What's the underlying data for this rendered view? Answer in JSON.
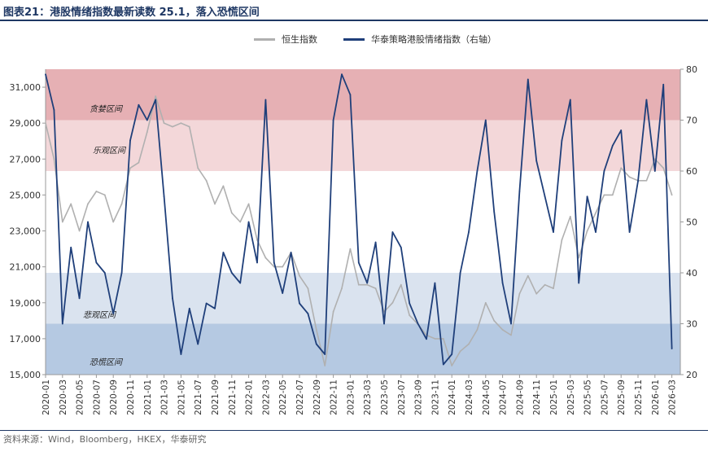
{
  "title": "图表21：港股情绪指数最新读数 25.1，落入恐慌区间",
  "source": "资料来源：Wind，Bloomberg，HKEX，华泰研究",
  "colors": {
    "hsi": "#b0b0b0",
    "sentiment": "#1f3f7a",
    "greed": "#e6b0b4",
    "optimism": "#f3d7d9",
    "pessimism": "#dae3ef",
    "panic": "#b5c9e2",
    "title": "#1f3864"
  },
  "chart_data": {
    "type": "line",
    "title": "",
    "xlabel": "",
    "ylabel_left": "",
    "ylabel_right": "",
    "y_left_lim": [
      15000,
      32000
    ],
    "y_left_ticks": [
      "15,000",
      "17,000",
      "19,000",
      "21,000",
      "23,000",
      "25,000",
      "27,000",
      "29,000",
      "31,000"
    ],
    "y_right_lim": [
      20,
      80
    ],
    "y_right_ticks": [
      "20",
      "30",
      "40",
      "50",
      "60",
      "70",
      "80"
    ],
    "x_ticks": [
      "2020-01",
      "2020-03",
      "2020-05",
      "2020-07",
      "2020-09",
      "2020-11",
      "2021-01",
      "2021-03",
      "2021-05",
      "2021-07",
      "2021-09",
      "2021-11",
      "2022-01",
      "2022-03",
      "2022-05",
      "2022-07",
      "2022-09",
      "2022-11",
      "2023-01",
      "2023-03",
      "2023-05",
      "2023-07",
      "2023-09",
      "2023-11",
      "2024-01",
      "2024-03",
      "2024-05",
      "2024-07",
      "2024-09",
      "2024-11",
      "2025-01",
      "2025-03",
      "2025-05",
      "2025-07",
      "2025-09",
      "2025-11",
      "2026-01",
      "2026-03"
    ],
    "bands": [
      {
        "label": "贪婪区间",
        "from": 70,
        "to": 80,
        "color": "#e6b0b4"
      },
      {
        "label": "乐观区间",
        "from": 60,
        "to": 70,
        "color": "#f3d7d9"
      },
      {
        "label": "悲观区间",
        "from": 30,
        "to": 40,
        "color": "#dae3ef"
      },
      {
        "label": "恐慌区间",
        "from": 20,
        "to": 30,
        "color": "#b5c9e2"
      }
    ],
    "legend_position": "top-right",
    "series": [
      {
        "name": "恒生指数",
        "axis": "left",
        "color": "#b0b0b0",
        "points": [
          [
            "2020-01",
            29000
          ],
          [
            "2020-02",
            27000
          ],
          [
            "2020-03",
            23500
          ],
          [
            "2020-04",
            24500
          ],
          [
            "2020-05",
            23000
          ],
          [
            "2020-06",
            24500
          ],
          [
            "2020-07",
            25200
          ],
          [
            "2020-08",
            25000
          ],
          [
            "2020-09",
            23500
          ],
          [
            "2020-10",
            24500
          ],
          [
            "2020-11",
            26500
          ],
          [
            "2020-12",
            26800
          ],
          [
            "2021-01",
            28500
          ],
          [
            "2021-02",
            30500
          ],
          [
            "2021-03",
            29000
          ],
          [
            "2021-04",
            28800
          ],
          [
            "2021-05",
            29000
          ],
          [
            "2021-06",
            28800
          ],
          [
            "2021-07",
            26500
          ],
          [
            "2021-08",
            25800
          ],
          [
            "2021-09",
            24500
          ],
          [
            "2021-10",
            25500
          ],
          [
            "2021-11",
            24000
          ],
          [
            "2021-12",
            23500
          ],
          [
            "2022-01",
            24500
          ],
          [
            "2022-02",
            22500
          ],
          [
            "2022-03",
            21500
          ],
          [
            "2022-04",
            21000
          ],
          [
            "2022-05",
            21000
          ],
          [
            "2022-06",
            21800
          ],
          [
            "2022-07",
            20500
          ],
          [
            "2022-08",
            19800
          ],
          [
            "2022-09",
            17500
          ],
          [
            "2022-10",
            15500
          ],
          [
            "2022-11",
            18500
          ],
          [
            "2022-12",
            19800
          ],
          [
            "2023-01",
            22000
          ],
          [
            "2023-02",
            20000
          ],
          [
            "2023-03",
            20000
          ],
          [
            "2023-04",
            19800
          ],
          [
            "2023-05",
            18500
          ],
          [
            "2023-06",
            19000
          ],
          [
            "2023-07",
            20000
          ],
          [
            "2023-08",
            18300
          ],
          [
            "2023-09",
            17800
          ],
          [
            "2023-10",
            17200
          ],
          [
            "2023-11",
            17000
          ],
          [
            "2023-12",
            17000
          ],
          [
            "2024-01",
            15500
          ],
          [
            "2024-02",
            16300
          ],
          [
            "2024-03",
            16700
          ],
          [
            "2024-04",
            17500
          ],
          [
            "2024-05",
            19000
          ],
          [
            "2024-06",
            18000
          ],
          [
            "2024-07",
            17500
          ],
          [
            "2024-08",
            17200
          ],
          [
            "2024-09",
            19500
          ],
          [
            "2024-10",
            20500
          ],
          [
            "2024-11",
            19500
          ],
          [
            "2024-12",
            20000
          ],
          [
            "2025-01",
            19800
          ],
          [
            "2025-02",
            22500
          ],
          [
            "2025-03",
            23800
          ],
          [
            "2025-04",
            21500
          ],
          [
            "2025-05",
            23000
          ],
          [
            "2025-06",
            24000
          ],
          [
            "2025-07",
            25000
          ],
          [
            "2025-08",
            25000
          ],
          [
            "2025-09",
            26500
          ],
          [
            "2025-10",
            26000
          ],
          [
            "2025-11",
            25800
          ],
          [
            "2025-12",
            25800
          ],
          [
            "2026-01",
            27000
          ],
          [
            "2026-02",
            26500
          ],
          [
            "2026-03",
            25000
          ]
        ]
      },
      {
        "name": "华泰策略港股情绪指数（右轴）",
        "axis": "right",
        "color": "#1f3f7a",
        "points": [
          [
            "2020-01",
            79
          ],
          [
            "2020-02",
            72
          ],
          [
            "2020-03",
            30
          ],
          [
            "2020-04",
            45
          ],
          [
            "2020-05",
            35
          ],
          [
            "2020-06",
            50
          ],
          [
            "2020-07",
            42
          ],
          [
            "2020-08",
            40
          ],
          [
            "2020-09",
            32
          ],
          [
            "2020-10",
            40
          ],
          [
            "2020-11",
            66
          ],
          [
            "2020-12",
            73
          ],
          [
            "2021-01",
            70
          ],
          [
            "2021-02",
            74
          ],
          [
            "2021-03",
            55
          ],
          [
            "2021-04",
            35
          ],
          [
            "2021-05",
            24
          ],
          [
            "2021-06",
            33
          ],
          [
            "2021-07",
            26
          ],
          [
            "2021-08",
            34
          ],
          [
            "2021-09",
            33
          ],
          [
            "2021-10",
            44
          ],
          [
            "2021-11",
            40
          ],
          [
            "2021-12",
            38
          ],
          [
            "2022-01",
            50
          ],
          [
            "2022-02",
            42
          ],
          [
            "2022-03",
            74
          ],
          [
            "2022-04",
            42
          ],
          [
            "2022-05",
            36
          ],
          [
            "2022-06",
            44
          ],
          [
            "2022-07",
            34
          ],
          [
            "2022-08",
            32
          ],
          [
            "2022-09",
            26
          ],
          [
            "2022-10",
            24
          ],
          [
            "2022-11",
            70
          ],
          [
            "2022-12",
            79
          ],
          [
            "2023-01",
            75
          ],
          [
            "2023-02",
            42
          ],
          [
            "2023-03",
            38
          ],
          [
            "2023-04",
            46
          ],
          [
            "2023-05",
            30
          ],
          [
            "2023-06",
            48
          ],
          [
            "2023-07",
            45
          ],
          [
            "2023-08",
            34
          ],
          [
            "2023-09",
            30
          ],
          [
            "2023-10",
            27
          ],
          [
            "2023-11",
            38
          ],
          [
            "2023-12",
            22
          ],
          [
            "2024-01",
            24
          ],
          [
            "2024-02",
            40
          ],
          [
            "2024-03",
            48
          ],
          [
            "2024-04",
            60
          ],
          [
            "2024-05",
            70
          ],
          [
            "2024-06",
            52
          ],
          [
            "2024-07",
            38
          ],
          [
            "2024-08",
            30
          ],
          [
            "2024-09",
            56
          ],
          [
            "2024-10",
            78
          ],
          [
            "2024-11",
            62
          ],
          [
            "2024-12",
            55
          ],
          [
            "2025-01",
            48
          ],
          [
            "2025-02",
            66
          ],
          [
            "2025-03",
            74
          ],
          [
            "2025-04",
            38
          ],
          [
            "2025-05",
            55
          ],
          [
            "2025-06",
            48
          ],
          [
            "2025-07",
            60
          ],
          [
            "2025-08",
            65
          ],
          [
            "2025-09",
            68
          ],
          [
            "2025-10",
            48
          ],
          [
            "2025-11",
            58
          ],
          [
            "2025-12",
            74
          ],
          [
            "2026-01",
            60
          ],
          [
            "2026-02",
            77
          ],
          [
            "2026-03",
            25.1
          ]
        ]
      }
    ]
  }
}
